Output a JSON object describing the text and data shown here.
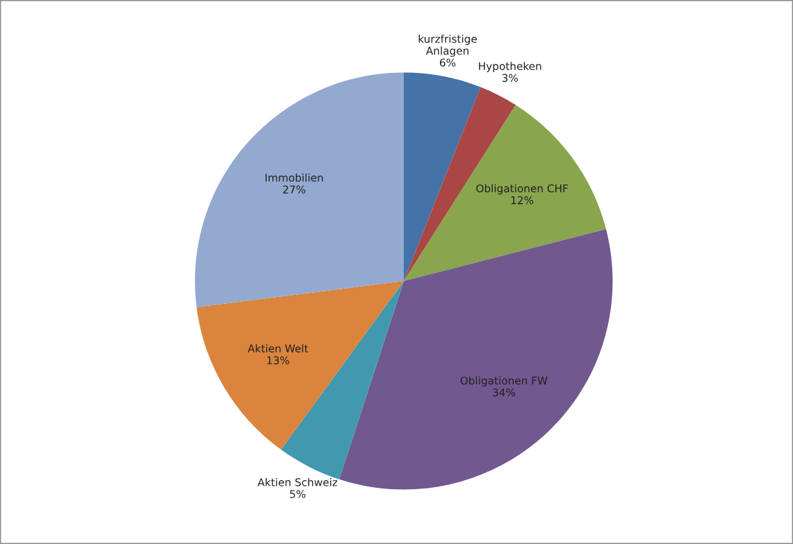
{
  "chart_data": {
    "type": "pie",
    "categories": [
      "kurzfristige\nAnlagen",
      "Hypotheken",
      "Obligationen CHF",
      "Obligationen FW",
      "Aktien Schweiz",
      "Aktien Welt",
      "Immobilien"
    ],
    "values": [
      6,
      3,
      12,
      34,
      5,
      13,
      27
    ],
    "colors": [
      "#4572a7",
      "#aa4643",
      "#89a54e",
      "#71588f",
      "#4198af",
      "#db843d",
      "#93a9cf"
    ],
    "value_labels": [
      "6%",
      "3%",
      "12%",
      "34%",
      "5%",
      "13%",
      "27%"
    ],
    "legend": false
  }
}
